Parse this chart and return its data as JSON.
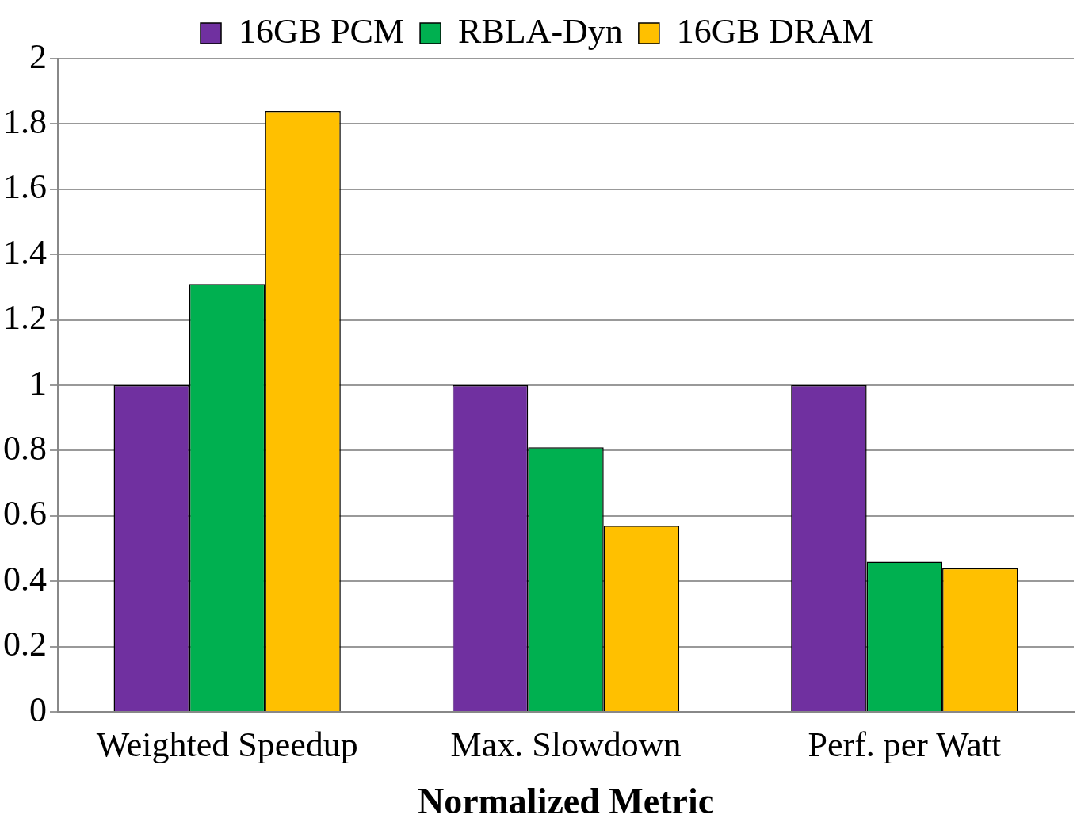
{
  "chart_data": {
    "type": "bar",
    "xlabel": "Normalized Metric",
    "categories": [
      "Weighted Speedup",
      "Max. Slowdown",
      "Perf. per Watt"
    ],
    "series": [
      {
        "name": "16GB PCM",
        "color": "#7030a0",
        "values": [
          1,
          1,
          1
        ]
      },
      {
        "name": "RBLA-Dyn",
        "color": "#00b050",
        "values": [
          1.31,
          0.81,
          0.46
        ]
      },
      {
        "name": "16GB DRAM",
        "color": "#ffc000",
        "values": [
          1.84,
          0.57,
          0.44
        ]
      }
    ],
    "ylim": [
      0,
      2
    ],
    "yticks": [
      0,
      0.2,
      0.4,
      0.6,
      0.8,
      1,
      1.2,
      1.4,
      1.6,
      1.8,
      2
    ],
    "grid": "y",
    "legend": "top"
  }
}
